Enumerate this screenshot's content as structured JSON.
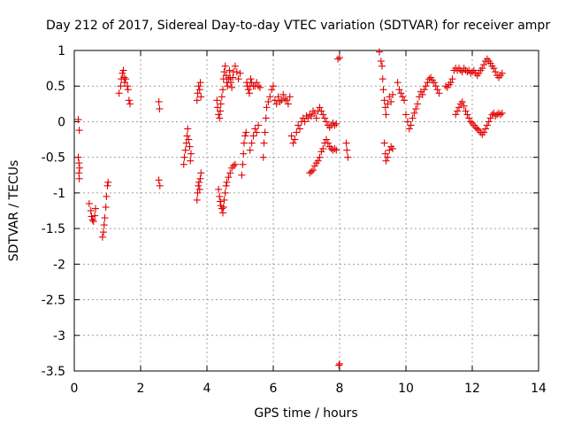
{
  "chart_data": {
    "type": "scatter",
    "title": "Day 212 of 2017, Sidereal Day-to-day VTEC variation (SDTVAR) for receiver ampr",
    "xlabel": "GPS time / hours",
    "ylabel": "SDTVAR / TECUs",
    "xlim": [
      0,
      14
    ],
    "ylim": [
      -3.5,
      1
    ],
    "xticks": [
      0,
      2,
      4,
      6,
      8,
      10,
      12,
      14
    ],
    "xtick_labels": [
      "0",
      "2",
      "4",
      "6",
      "8",
      "10",
      "12",
      "14"
    ],
    "yticks": [
      -3.5,
      -3,
      -2.5,
      -2,
      -1.5,
      -1,
      -0.5,
      0,
      0.5,
      1
    ],
    "ytick_labels": [
      "-3.5",
      "-3",
      "-2.5",
      "-2",
      "-1.5",
      "-1",
      "-0.5",
      "0",
      "0.5",
      "1"
    ],
    "grid": true,
    "marker": "+",
    "color": "#e00000",
    "series": [
      {
        "name": "SDTVAR",
        "points": [
          [
            0.12,
            0.03
          ],
          [
            0.15,
            -0.12
          ],
          [
            0.12,
            -0.5
          ],
          [
            0.14,
            -0.58
          ],
          [
            0.16,
            -0.65
          ],
          [
            0.14,
            -0.72
          ],
          [
            0.15,
            -0.8
          ],
          [
            0.45,
            -1.15
          ],
          [
            0.5,
            -1.25
          ],
          [
            0.52,
            -1.33
          ],
          [
            0.55,
            -1.38
          ],
          [
            0.58,
            -1.4
          ],
          [
            0.62,
            -1.32
          ],
          [
            0.64,
            -1.22
          ],
          [
            0.85,
            -1.62
          ],
          [
            0.88,
            -1.55
          ],
          [
            0.9,
            -1.45
          ],
          [
            0.92,
            -1.35
          ],
          [
            0.95,
            -1.2
          ],
          [
            0.97,
            -1.05
          ],
          [
            1.0,
            -0.9
          ],
          [
            1.02,
            -0.85
          ],
          [
            1.35,
            0.4
          ],
          [
            1.4,
            0.5
          ],
          [
            1.42,
            0.6
          ],
          [
            1.45,
            0.68
          ],
          [
            1.48,
            0.72
          ],
          [
            1.5,
            0.62
          ],
          [
            1.52,
            0.55
          ],
          [
            1.55,
            0.6
          ],
          [
            1.6,
            0.5
          ],
          [
            1.62,
            0.45
          ],
          [
            1.65,
            0.3
          ],
          [
            1.68,
            0.25
          ],
          [
            2.55,
            0.28
          ],
          [
            2.57,
            0.18
          ],
          [
            2.55,
            -0.82
          ],
          [
            2.58,
            -0.9
          ],
          [
            3.3,
            -0.6
          ],
          [
            3.32,
            -0.5
          ],
          [
            3.35,
            -0.4
          ],
          [
            3.38,
            -0.3
          ],
          [
            3.4,
            -0.2
          ],
          [
            3.42,
            -0.1
          ],
          [
            3.45,
            -0.25
          ],
          [
            3.48,
            -0.35
          ],
          [
            3.5,
            -0.55
          ],
          [
            3.52,
            -0.45
          ],
          [
            3.7,
            -1.1
          ],
          [
            3.72,
            -1.0
          ],
          [
            3.74,
            -0.9
          ],
          [
            3.76,
            -0.85
          ],
          [
            3.78,
            -0.95
          ],
          [
            3.8,
            -0.8
          ],
          [
            3.82,
            -0.72
          ],
          [
            3.7,
            0.3
          ],
          [
            3.72,
            0.4
          ],
          [
            3.75,
            0.5
          ],
          [
            3.78,
            0.45
          ],
          [
            3.8,
            0.55
          ],
          [
            3.82,
            0.35
          ],
          [
            4.3,
            0.3
          ],
          [
            4.32,
            0.2
          ],
          [
            4.35,
            0.1
          ],
          [
            4.38,
            0.05
          ],
          [
            4.4,
            0.15
          ],
          [
            4.42,
            0.25
          ],
          [
            4.45,
            0.35
          ],
          [
            4.48,
            0.45
          ],
          [
            4.35,
            -0.95
          ],
          [
            4.38,
            -1.05
          ],
          [
            4.4,
            -1.12
          ],
          [
            4.42,
            -1.18
          ],
          [
            4.45,
            -1.22
          ],
          [
            4.48,
            -1.28
          ],
          [
            4.5,
            -1.2
          ],
          [
            4.52,
            -1.1
          ],
          [
            4.55,
            -1.0
          ],
          [
            4.58,
            -0.9
          ],
          [
            4.6,
            -0.85
          ],
          [
            4.65,
            -0.78
          ],
          [
            4.7,
            -0.72
          ],
          [
            4.75,
            -0.65
          ],
          [
            4.8,
            -0.62
          ],
          [
            4.85,
            -0.6
          ],
          [
            4.5,
            0.6
          ],
          [
            4.52,
            0.7
          ],
          [
            4.55,
            0.78
          ],
          [
            4.58,
            0.65
          ],
          [
            4.6,
            0.55
          ],
          [
            4.62,
            0.5
          ],
          [
            4.65,
            0.6
          ],
          [
            4.68,
            0.72
          ],
          [
            4.7,
            0.62
          ],
          [
            4.72,
            0.55
          ],
          [
            4.75,
            0.48
          ],
          [
            4.78,
            0.62
          ],
          [
            4.8,
            0.7
          ],
          [
            4.85,
            0.78
          ],
          [
            4.9,
            0.7
          ],
          [
            4.95,
            0.6
          ],
          [
            5.0,
            0.68
          ],
          [
            5.05,
            -0.75
          ],
          [
            5.08,
            -0.6
          ],
          [
            5.1,
            -0.45
          ],
          [
            5.12,
            -0.3
          ],
          [
            5.15,
            -0.2
          ],
          [
            5.18,
            -0.15
          ],
          [
            5.2,
            0.55
          ],
          [
            5.22,
            0.5
          ],
          [
            5.25,
            0.45
          ],
          [
            5.28,
            0.4
          ],
          [
            5.3,
            0.5
          ],
          [
            5.32,
            0.6
          ],
          [
            5.35,
            0.55
          ],
          [
            5.4,
            0.5
          ],
          [
            5.3,
            -0.4
          ],
          [
            5.35,
            -0.3
          ],
          [
            5.4,
            -0.2
          ],
          [
            5.45,
            -0.1
          ],
          [
            5.5,
            -0.15
          ],
          [
            5.55,
            -0.05
          ],
          [
            5.45,
            0.5
          ],
          [
            5.5,
            0.55
          ],
          [
            5.55,
            0.5
          ],
          [
            5.6,
            0.48
          ],
          [
            5.7,
            -0.5
          ],
          [
            5.72,
            -0.3
          ],
          [
            5.75,
            -0.15
          ],
          [
            5.78,
            0.05
          ],
          [
            5.8,
            0.2
          ],
          [
            5.85,
            0.28
          ],
          [
            5.9,
            0.35
          ],
          [
            5.95,
            0.45
          ],
          [
            6.0,
            0.5
          ],
          [
            6.05,
            0.3
          ],
          [
            6.1,
            0.25
          ],
          [
            6.15,
            0.35
          ],
          [
            6.2,
            0.28
          ],
          [
            6.25,
            0.3
          ],
          [
            6.3,
            0.38
          ],
          [
            6.35,
            0.32
          ],
          [
            6.4,
            0.3
          ],
          [
            6.45,
            0.25
          ],
          [
            6.5,
            0.35
          ],
          [
            6.55,
            -0.2
          ],
          [
            6.6,
            -0.3
          ],
          [
            6.65,
            -0.25
          ],
          [
            6.7,
            -0.15
          ],
          [
            6.75,
            -0.05
          ],
          [
            6.8,
            -0.1
          ],
          [
            6.85,
            0.0
          ],
          [
            6.9,
            0.05
          ],
          [
            6.95,
            0.0
          ],
          [
            7.0,
            0.08
          ],
          [
            7.05,
            0.05
          ],
          [
            7.1,
            0.1
          ],
          [
            7.15,
            0.08
          ],
          [
            7.2,
            0.15
          ],
          [
            7.25,
            0.12
          ],
          [
            7.3,
            0.05
          ],
          [
            7.35,
            0.15
          ],
          [
            7.4,
            0.2
          ],
          [
            7.45,
            0.15
          ],
          [
            7.5,
            0.1
          ],
          [
            7.55,
            0.05
          ],
          [
            7.6,
            0.0
          ],
          [
            7.65,
            -0.05
          ],
          [
            7.7,
            -0.08
          ],
          [
            7.75,
            -0.05
          ],
          [
            7.8,
            -0.02
          ],
          [
            7.85,
            -0.05
          ],
          [
            7.9,
            -0.03
          ],
          [
            7.1,
            -0.72
          ],
          [
            7.15,
            -0.7
          ],
          [
            7.2,
            -0.68
          ],
          [
            7.25,
            -0.62
          ],
          [
            7.3,
            -0.58
          ],
          [
            7.35,
            -0.55
          ],
          [
            7.4,
            -0.5
          ],
          [
            7.45,
            -0.42
          ],
          [
            7.5,
            -0.38
          ],
          [
            7.55,
            -0.3
          ],
          [
            7.6,
            -0.25
          ],
          [
            7.65,
            -0.3
          ],
          [
            7.7,
            -0.35
          ],
          [
            7.75,
            -0.38
          ],
          [
            7.8,
            -0.4
          ],
          [
            7.85,
            -0.38
          ],
          [
            7.9,
            -0.4
          ],
          [
            7.95,
            0.88
          ],
          [
            8.0,
            0.9
          ],
          [
            8.0,
            -3.4
          ],
          [
            7.98,
            -3.42
          ],
          [
            8.2,
            -0.3
          ],
          [
            8.22,
            -0.4
          ],
          [
            8.25,
            -0.5
          ],
          [
            9.2,
            0.98
          ],
          [
            9.25,
            0.85
          ],
          [
            9.28,
            0.78
          ],
          [
            9.3,
            0.6
          ],
          [
            9.32,
            0.45
          ],
          [
            9.35,
            0.3
          ],
          [
            9.38,
            0.2
          ],
          [
            9.4,
            0.1
          ],
          [
            9.45,
            0.25
          ],
          [
            9.5,
            0.35
          ],
          [
            9.55,
            0.28
          ],
          [
            9.6,
            0.38
          ],
          [
            9.35,
            -0.3
          ],
          [
            9.38,
            -0.45
          ],
          [
            9.4,
            -0.55
          ],
          [
            9.45,
            -0.5
          ],
          [
            9.5,
            -0.4
          ],
          [
            9.55,
            -0.35
          ],
          [
            9.6,
            -0.38
          ],
          [
            9.75,
            0.55
          ],
          [
            9.8,
            0.45
          ],
          [
            9.85,
            0.4
          ],
          [
            9.9,
            0.35
          ],
          [
            9.95,
            0.3
          ],
          [
            10.0,
            0.1
          ],
          [
            10.05,
            0.0
          ],
          [
            10.1,
            -0.1
          ],
          [
            10.15,
            -0.05
          ],
          [
            10.2,
            0.05
          ],
          [
            10.25,
            0.12
          ],
          [
            10.3,
            0.18
          ],
          [
            10.35,
            0.25
          ],
          [
            10.4,
            0.35
          ],
          [
            10.45,
            0.42
          ],
          [
            10.5,
            0.38
          ],
          [
            10.55,
            0.45
          ],
          [
            10.6,
            0.5
          ],
          [
            10.65,
            0.55
          ],
          [
            10.7,
            0.6
          ],
          [
            10.75,
            0.62
          ],
          [
            10.8,
            0.58
          ],
          [
            10.85,
            0.55
          ],
          [
            10.9,
            0.5
          ],
          [
            10.95,
            0.45
          ],
          [
            11.0,
            0.4
          ],
          [
            11.2,
            0.5
          ],
          [
            11.25,
            0.48
          ],
          [
            11.3,
            0.52
          ],
          [
            11.35,
            0.55
          ],
          [
            11.4,
            0.6
          ],
          [
            11.45,
            0.72
          ],
          [
            11.5,
            0.75
          ],
          [
            11.55,
            0.72
          ],
          [
            11.6,
            0.75
          ],
          [
            11.65,
            0.72
          ],
          [
            11.7,
            0.7
          ],
          [
            11.75,
            0.75
          ],
          [
            11.8,
            0.72
          ],
          [
            11.85,
            0.7
          ],
          [
            11.9,
            0.72
          ],
          [
            11.95,
            0.68
          ],
          [
            12.0,
            0.7
          ],
          [
            12.05,
            0.72
          ],
          [
            12.1,
            0.68
          ],
          [
            12.15,
            0.65
          ],
          [
            12.2,
            0.68
          ],
          [
            12.25,
            0.72
          ],
          [
            12.3,
            0.75
          ],
          [
            12.35,
            0.8
          ],
          [
            12.4,
            0.85
          ],
          [
            12.45,
            0.88
          ],
          [
            12.5,
            0.85
          ],
          [
            12.55,
            0.82
          ],
          [
            12.6,
            0.78
          ],
          [
            12.65,
            0.75
          ],
          [
            12.7,
            0.7
          ],
          [
            12.75,
            0.65
          ],
          [
            12.8,
            0.62
          ],
          [
            12.85,
            0.65
          ],
          [
            12.9,
            0.68
          ],
          [
            11.5,
            0.1
          ],
          [
            11.55,
            0.15
          ],
          [
            11.6,
            0.2
          ],
          [
            11.65,
            0.25
          ],
          [
            11.7,
            0.28
          ],
          [
            11.75,
            0.22
          ],
          [
            11.8,
            0.15
          ],
          [
            11.85,
            0.1
          ],
          [
            11.9,
            0.05
          ],
          [
            11.95,
            0.0
          ],
          [
            12.0,
            -0.02
          ],
          [
            12.05,
            -0.05
          ],
          [
            12.1,
            -0.08
          ],
          [
            12.15,
            -0.1
          ],
          [
            12.2,
            -0.12
          ],
          [
            12.25,
            -0.15
          ],
          [
            12.3,
            -0.18
          ],
          [
            12.35,
            -0.15
          ],
          [
            12.4,
            -0.1
          ],
          [
            12.45,
            -0.05
          ],
          [
            12.5,
            0.0
          ],
          [
            12.55,
            0.05
          ],
          [
            12.6,
            0.1
          ],
          [
            12.65,
            0.12
          ],
          [
            12.7,
            0.08
          ],
          [
            12.75,
            0.1
          ],
          [
            12.8,
            0.12
          ],
          [
            12.85,
            0.1
          ],
          [
            12.9,
            0.12
          ]
        ]
      }
    ]
  }
}
